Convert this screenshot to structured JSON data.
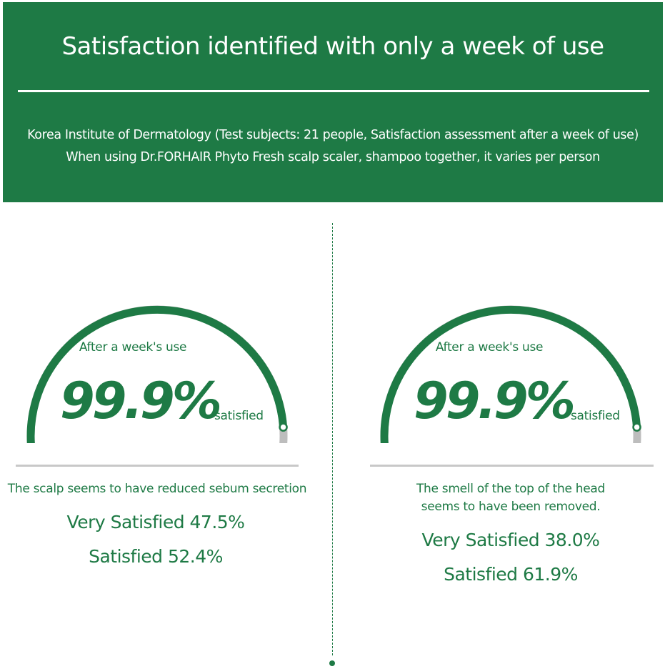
{
  "header": {
    "title": "Satisfaction identified with only a week of use",
    "subtitle_line1": "Korea Institute of Dermatology (Test subjects: 21 people, Satisfaction assessment after a week of use)",
    "subtitle_line2": "When using Dr.FORHAIR Phyto Fresh scalp scaler, shampoo together, it varies per person"
  },
  "colors": {
    "brand_green": "#1e7a45",
    "gauge_remaining": "#bdbdbd",
    "rule_gray": "#c8c8c8",
    "text_on_green": "#ffffff"
  },
  "panels": [
    {
      "gauge_caption": "After a week's use",
      "value_text": "99.9%",
      "value_fraction": 0.999,
      "value_suffix": "satisfied",
      "statement": "The scalp seems to have reduced sebum secretion",
      "very_satisfied": "Very Satisfied 47.5%",
      "satisfied": "Satisfied 52.4%"
    },
    {
      "gauge_caption": "After a week's use",
      "value_text": "99.9%",
      "value_fraction": 0.999,
      "value_suffix": "satisfied",
      "statement_line1": "The smell of the top of the head",
      "statement_line2": "seems to have been removed.",
      "very_satisfied": "Very Satisfied 38.0%",
      "satisfied": "Satisfied 61.9%"
    }
  ]
}
